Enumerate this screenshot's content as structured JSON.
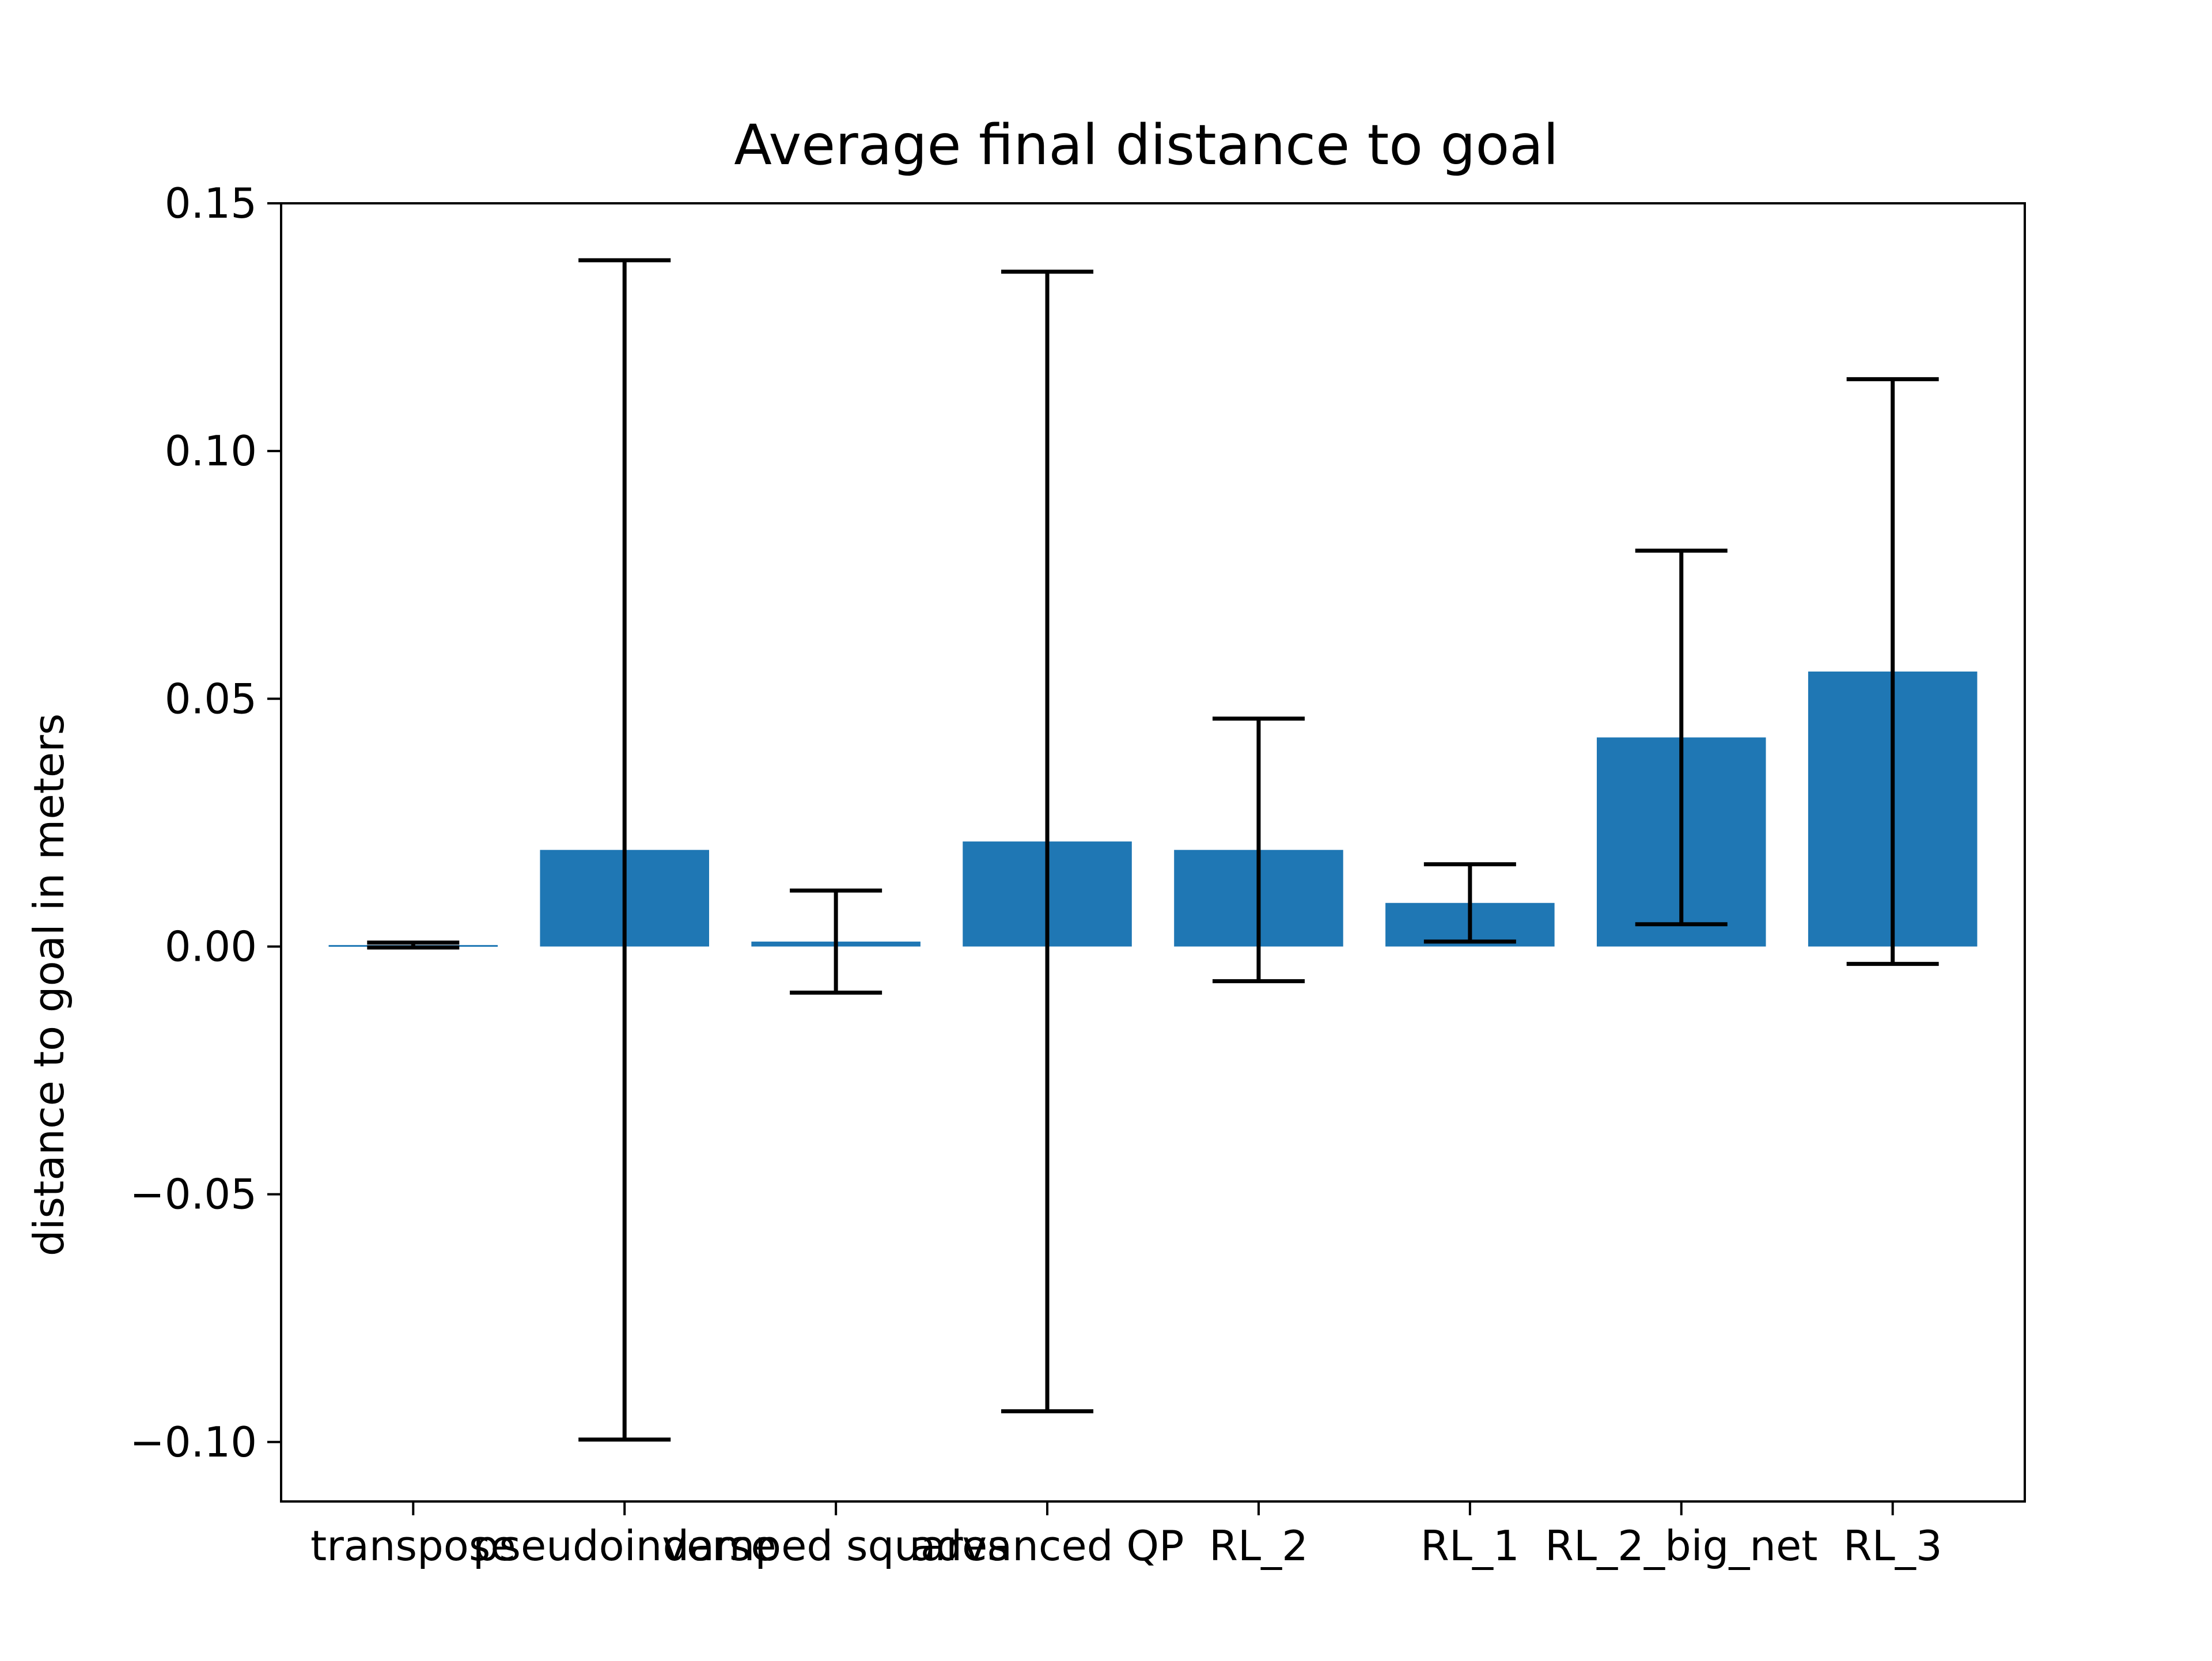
{
  "chart_data": {
    "type": "bar",
    "title": "Average final distance to goal",
    "xlabel": "",
    "ylabel": "distance to goal in meters",
    "categories": [
      "transpose",
      "pseudoinverse",
      "damped squares",
      "advanced QP",
      "RL_2",
      "RL_1",
      "RL_2_big_net",
      "RL_3"
    ],
    "values": [
      0.0003,
      0.0195,
      0.001,
      0.0212,
      0.0195,
      0.0088,
      0.0422,
      0.0555
    ],
    "errors": [
      0.0005,
      0.119,
      0.0103,
      0.115,
      0.0265,
      0.0078,
      0.0377,
      0.059
    ],
    "ylim": [
      -0.112,
      0.15
    ],
    "yticks": [
      -0.1,
      -0.05,
      0.0,
      0.05,
      0.1,
      0.15
    ],
    "ytick_labels": [
      "−0.10",
      "−0.05",
      "0.00",
      "0.05",
      "0.10",
      "0.15"
    ],
    "grid": false,
    "bar_color": "#1f77b4",
    "error_color": "#000000"
  }
}
